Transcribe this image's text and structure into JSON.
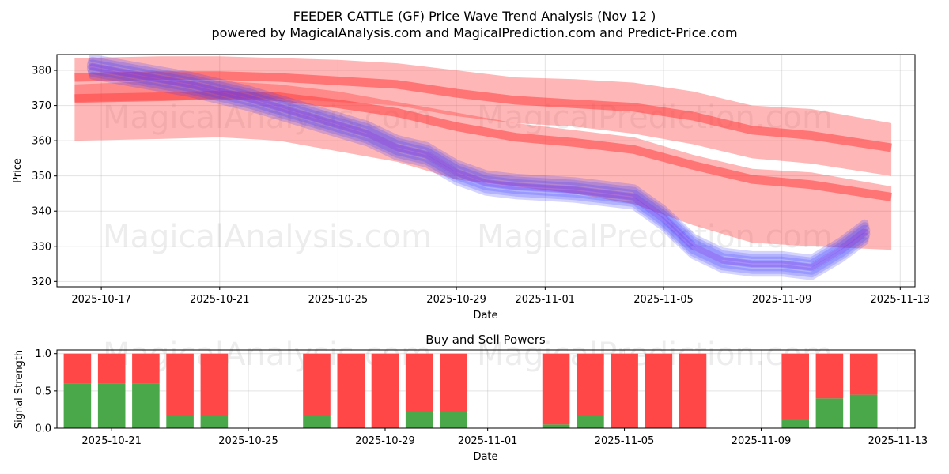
{
  "chart_data": [
    {
      "type": "area",
      "title": "FEEDER CATTLE (GF) Price Wave Trend Analysis (Nov 12 )",
      "subtitle": "powered by MagicalAnalysis.com and MagicalPrediction.com and Predict-Price.com",
      "xlabel": "Date",
      "ylabel": "Price",
      "ylim": [
        318.5,
        384.5
      ],
      "yticks": [
        320,
        330,
        340,
        350,
        360,
        370,
        380
      ],
      "xlim_days": [
        -1.5,
        27.5
      ],
      "xtick_labels": [
        "2025-10-17",
        "2025-10-21",
        "2025-10-25",
        "2025-10-29",
        "2025-11-01",
        "2025-11-05",
        "2025-11-09",
        "2025-11-13"
      ],
      "xtick_days": [
        0,
        4,
        8,
        12,
        15,
        19,
        23,
        27
      ],
      "watermarks": [
        "MagicalAnalysis.com",
        "MagicalPrediction.com"
      ],
      "series": [
        {
          "name": "Actual price wave (blue)",
          "color": "#3b3bff",
          "x_days": [
            -0.3,
            1,
            3,
            5,
            7,
            9,
            10,
            11,
            12,
            13,
            14,
            16,
            18,
            19,
            20,
            21,
            22,
            23,
            24,
            25,
            25.8
          ],
          "y": [
            381,
            379,
            376,
            372,
            367,
            362,
            358,
            356,
            351,
            348,
            347,
            346,
            344,
            338,
            330,
            326,
            325,
            325,
            324,
            329,
            334
          ]
        },
        {
          "name": "Upper prediction band (red)",
          "color": "#ff4040",
          "x_days": [
            -0.9,
            2,
            4,
            6,
            8,
            10,
            12,
            14,
            16,
            18,
            20,
            22,
            24,
            26.7
          ],
          "y_center": [
            378,
            378.5,
            378.5,
            378,
            377,
            376,
            373.5,
            371.5,
            370.5,
            369.5,
            367,
            363,
            361.5,
            358
          ],
          "y_high": [
            383.5,
            384,
            384,
            383.5,
            383,
            382,
            380,
            378,
            377.5,
            376.5,
            374,
            370,
            369,
            365
          ],
          "y_low": [
            371,
            371.5,
            372,
            372,
            371,
            370,
            367,
            365,
            364,
            362,
            359,
            355,
            353.5,
            350
          ]
        },
        {
          "name": "Lower prediction band (red)",
          "color": "#ff4040",
          "x_days": [
            -0.9,
            2,
            4,
            6,
            8,
            10,
            12,
            14,
            16,
            18,
            20,
            22,
            24,
            26.7
          ],
          "y_center": [
            372,
            372.5,
            373,
            372.5,
            370.5,
            368,
            364,
            361,
            359.5,
            357.5,
            353,
            349,
            347.5,
            344
          ],
          "y_high": [
            376,
            377,
            377,
            376,
            374,
            371,
            368,
            365,
            363,
            361,
            356,
            352,
            351,
            347
          ],
          "y_low": [
            360,
            360.5,
            361,
            360,
            357,
            354,
            349,
            347,
            345,
            342,
            336,
            331,
            330,
            329
          ]
        }
      ]
    },
    {
      "type": "bar",
      "title": "Buy and Sell Powers",
      "xlabel": "Date",
      "ylabel": "Signal Strength",
      "ylim": [
        0,
        1.05
      ],
      "yticks": [
        0.0,
        0.5,
        1.0
      ],
      "ytick_labels": [
        "0.0",
        "0.5",
        "1.0"
      ],
      "xlim_days": [
        2.4,
        27.5
      ],
      "xtick_labels": [
        "2025-10-21",
        "2025-10-25",
        "2025-10-29",
        "2025-11-01",
        "2025-11-05",
        "2025-11-09",
        "2025-11-13"
      ],
      "xtick_days": [
        4,
        8,
        12,
        15,
        19,
        23,
        27
      ],
      "buy_color": "#4aa84a",
      "sell_color": "#ff4747",
      "bar_days": [
        3,
        4,
        5,
        6,
        7,
        10,
        11,
        12,
        13,
        14,
        17,
        18,
        19,
        20,
        21,
        24,
        25,
        26
      ],
      "buy": [
        0.6,
        0.6,
        0.6,
        0.17,
        0.17,
        0.17,
        0.0,
        0.0,
        0.22,
        0.22,
        0.05,
        0.17,
        0.0,
        0.0,
        0.0,
        0.12,
        0.4,
        0.45
      ],
      "sell": [
        0.4,
        0.4,
        0.4,
        0.83,
        0.83,
        0.83,
        1.0,
        1.0,
        0.78,
        0.78,
        0.95,
        0.83,
        1.0,
        1.0,
        1.0,
        0.88,
        0.6,
        0.55
      ]
    }
  ]
}
